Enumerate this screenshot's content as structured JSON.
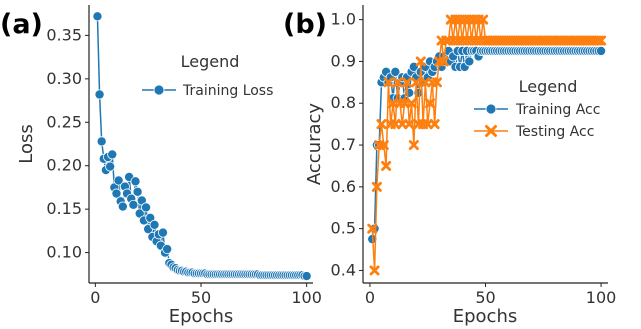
{
  "colors": {
    "blue": "#1f77b4",
    "orange": "#ff7f0e",
    "axis": "#222222",
    "text": "#333333"
  },
  "chart_data": [
    {
      "type": "line",
      "panel_label": "(a)",
      "xlabel": "Epochs",
      "ylabel": "Loss",
      "xlim": [
        -3,
        103
      ],
      "ylim": [
        0.065,
        0.385
      ],
      "xticks": [
        0,
        50,
        100
      ],
      "yticks": [
        0.1,
        0.15,
        0.2,
        0.25,
        0.3,
        0.35
      ],
      "xtick_labels": [
        "0",
        "50",
        "100"
      ],
      "ytick_labels": [
        "0.10",
        "0.15",
        "0.20",
        "0.25",
        "0.30",
        "0.35"
      ],
      "legend": {
        "title": "Legend",
        "placement": "upper-right",
        "entries": [
          "Training Loss"
        ]
      },
      "series": [
        {
          "name": "Training Loss",
          "color": "#1f77b4",
          "marker": "circle",
          "x": [
            1,
            2,
            3,
            4,
            5,
            6,
            7,
            8,
            9,
            10,
            11,
            12,
            13,
            14,
            15,
            16,
            17,
            18,
            19,
            20,
            21,
            22,
            23,
            24,
            25,
            26,
            27,
            28,
            29,
            30,
            31,
            32,
            33,
            34,
            35,
            36,
            37,
            38,
            39,
            40,
            41,
            42,
            43,
            44,
            45,
            46,
            47,
            48,
            49,
            50,
            51,
            52,
            53,
            54,
            55,
            56,
            57,
            58,
            59,
            60,
            61,
            62,
            63,
            64,
            65,
            66,
            67,
            68,
            69,
            70,
            71,
            72,
            73,
            74,
            75,
            76,
            77,
            78,
            79,
            80,
            81,
            82,
            83,
            84,
            85,
            86,
            87,
            88,
            89,
            90,
            91,
            92,
            93,
            94,
            95,
            96,
            97,
            98,
            99,
            100
          ],
          "y": [
            0.372,
            0.282,
            0.228,
            0.208,
            0.195,
            0.21,
            0.199,
            0.213,
            0.175,
            0.168,
            0.183,
            0.159,
            0.153,
            0.176,
            0.168,
            0.187,
            0.162,
            0.155,
            0.182,
            0.17,
            0.145,
            0.16,
            0.137,
            0.152,
            0.127,
            0.14,
            0.118,
            0.132,
            0.113,
            0.121,
            0.108,
            0.123,
            0.1,
            0.104,
            0.088,
            0.086,
            0.083,
            0.082,
            0.08,
            0.079,
            0.079,
            0.078,
            0.078,
            0.077,
            0.077,
            0.077,
            0.076,
            0.076,
            0.076,
            0.076,
            0.076,
            0.076,
            0.075,
            0.075,
            0.075,
            0.075,
            0.075,
            0.075,
            0.075,
            0.075,
            0.075,
            0.075,
            0.075,
            0.075,
            0.075,
            0.075,
            0.075,
            0.075,
            0.075,
            0.075,
            0.075,
            0.075,
            0.075,
            0.075,
            0.075,
            0.075,
            0.075,
            0.074,
            0.074,
            0.074,
            0.074,
            0.074,
            0.074,
            0.074,
            0.074,
            0.074,
            0.074,
            0.074,
            0.074,
            0.074,
            0.074,
            0.074,
            0.074,
            0.074,
            0.074,
            0.074,
            0.074,
            0.074,
            0.073,
            0.073
          ]
        }
      ]
    },
    {
      "type": "line",
      "panel_label": "(b)",
      "xlabel": "Epochs",
      "ylabel": "Accuracy",
      "xlim": [
        -3,
        103
      ],
      "ylim": [
        0.37,
        1.035
      ],
      "xticks": [
        0,
        50,
        100
      ],
      "yticks": [
        0.4,
        0.5,
        0.6,
        0.7,
        0.8,
        0.9,
        1.0
      ],
      "xtick_labels": [
        "0",
        "50",
        "100"
      ],
      "ytick_labels": [
        "0.4",
        "0.5",
        "0.6",
        "0.7",
        "0.8",
        "0.9",
        "1.0"
      ],
      "legend": {
        "title": "Legend",
        "placement": "center-right",
        "entries": [
          "Training Acc",
          "Testing Acc"
        ]
      },
      "series": [
        {
          "name": "Training Acc",
          "color": "#1f77b4",
          "marker": "circle",
          "x": [
            1,
            2,
            3,
            4,
            5,
            6,
            7,
            8,
            9,
            10,
            11,
            12,
            13,
            14,
            15,
            16,
            17,
            18,
            19,
            20,
            21,
            22,
            23,
            24,
            25,
            26,
            27,
            28,
            29,
            30,
            31,
            32,
            33,
            34,
            35,
            36,
            37,
            38,
            39,
            40,
            41,
            42,
            43,
            44,
            45,
            46,
            47,
            48,
            49,
            50,
            51,
            52,
            53,
            54,
            55,
            56,
            57,
            58,
            59,
            60,
            61,
            62,
            63,
            64,
            65,
            66,
            67,
            68,
            69,
            70,
            71,
            72,
            73,
            74,
            75,
            76,
            77,
            78,
            79,
            80,
            81,
            82,
            83,
            84,
            85,
            86,
            87,
            88,
            89,
            90,
            91,
            92,
            93,
            94,
            95,
            96,
            97,
            98,
            99,
            100
          ],
          "y": [
            0.475,
            0.5,
            0.7,
            0.7,
            0.85,
            0.862,
            0.875,
            0.85,
            0.862,
            0.812,
            0.875,
            0.812,
            0.85,
            0.862,
            0.812,
            0.862,
            0.825,
            0.875,
            0.887,
            0.862,
            0.825,
            0.875,
            0.85,
            0.887,
            0.862,
            0.9,
            0.875,
            0.887,
            0.9,
            0.912,
            0.887,
            0.912,
            0.9,
            0.925,
            0.9,
            0.912,
            0.887,
            0.925,
            0.887,
            0.925,
            0.887,
            0.925,
            0.9,
            0.925,
            0.925,
            0.925,
            0.912,
            0.925,
            0.925,
            0.925,
            0.925,
            0.925,
            0.925,
            0.925,
            0.925,
            0.925,
            0.925,
            0.925,
            0.925,
            0.925,
            0.925,
            0.925,
            0.925,
            0.925,
            0.925,
            0.925,
            0.925,
            0.925,
            0.925,
            0.925,
            0.925,
            0.925,
            0.925,
            0.925,
            0.925,
            0.925,
            0.925,
            0.925,
            0.925,
            0.925,
            0.925,
            0.925,
            0.925,
            0.925,
            0.925,
            0.925,
            0.925,
            0.925,
            0.925,
            0.925,
            0.925,
            0.925,
            0.925,
            0.925,
            0.925,
            0.925,
            0.925,
            0.925,
            0.925,
            0.925
          ]
        },
        {
          "name": "Testing Acc",
          "color": "#ff7f0e",
          "marker": "x",
          "x": [
            1,
            2,
            3,
            4,
            5,
            6,
            7,
            8,
            9,
            10,
            11,
            12,
            13,
            14,
            15,
            16,
            17,
            18,
            19,
            20,
            21,
            22,
            23,
            24,
            25,
            26,
            27,
            28,
            29,
            30,
            31,
            32,
            33,
            34,
            35,
            36,
            37,
            38,
            39,
            40,
            41,
            42,
            43,
            44,
            45,
            46,
            47,
            48,
            49,
            50,
            51,
            52,
            53,
            54,
            55,
            56,
            57,
            58,
            59,
            60,
            61,
            62,
            63,
            64,
            65,
            66,
            67,
            68,
            69,
            70,
            71,
            72,
            73,
            74,
            75,
            76,
            77,
            78,
            79,
            80,
            81,
            82,
            83,
            84,
            85,
            86,
            87,
            88,
            89,
            90,
            91,
            92,
            93,
            94,
            95,
            96,
            97,
            98,
            99,
            100
          ],
          "y": [
            0.5,
            0.4,
            0.6,
            0.7,
            0.75,
            0.7,
            0.65,
            0.85,
            0.75,
            0.8,
            0.75,
            0.85,
            0.8,
            0.75,
            0.8,
            0.85,
            0.75,
            0.8,
            0.7,
            0.85,
            0.75,
            0.9,
            0.75,
            0.85,
            0.75,
            0.8,
            0.85,
            0.75,
            0.85,
            0.9,
            0.95,
            0.9,
            0.95,
            0.95,
            1.0,
            0.95,
            1.0,
            0.95,
            1.0,
            0.95,
            1.0,
            0.95,
            1.0,
            0.95,
            1.0,
            0.95,
            1.0,
            0.95,
            1.0,
            0.95,
            0.95,
            0.95,
            0.95,
            0.95,
            0.95,
            0.95,
            0.95,
            0.95,
            0.95,
            0.95,
            0.95,
            0.95,
            0.95,
            0.95,
            0.95,
            0.95,
            0.95,
            0.95,
            0.95,
            0.95,
            0.95,
            0.95,
            0.95,
            0.95,
            0.95,
            0.95,
            0.95,
            0.95,
            0.95,
            0.95,
            0.95,
            0.95,
            0.95,
            0.95,
            0.95,
            0.95,
            0.95,
            0.95,
            0.95,
            0.95,
            0.95,
            0.95,
            0.95,
            0.95,
            0.95,
            0.95,
            0.95,
            0.95,
            0.95,
            0.95
          ]
        }
      ]
    }
  ]
}
